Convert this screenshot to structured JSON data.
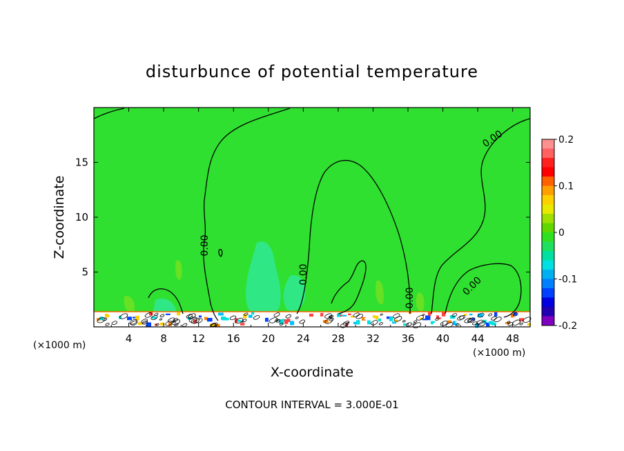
{
  "chart_data": {
    "type": "heatmap",
    "title": "disturbunce of potential temperature",
    "xlabel": "X-coordinate",
    "ylabel": "Z-coordinate",
    "x_unit_left": "(×1000 m)",
    "x_unit_right": "(×1000 m)",
    "xlim": [
      0,
      50
    ],
    "ylim": [
      0,
      20
    ],
    "x_ticks": [
      "4",
      "8",
      "12",
      "16",
      "20",
      "24",
      "28",
      "32",
      "36",
      "40",
      "44",
      "48"
    ],
    "y_ticks": [
      "5",
      "10",
      "15"
    ],
    "colorbar": {
      "min": -0.2,
      "max": 0.2,
      "tick_labels": [
        "0.2",
        "0.1",
        "0",
        "-0.1",
        "-0.2"
      ],
      "colors": [
        "#ff9090",
        "#ff6060",
        "#ff2020",
        "#ff0000",
        "#ff6000",
        "#ffa000",
        "#ffd000",
        "#e8e800",
        "#a0e000",
        "#60d800",
        "#30e020",
        "#20e060",
        "#00e0a0",
        "#00e0e0",
        "#00b0f0",
        "#0080ff",
        "#0040ff",
        "#0000e0",
        "#2000b0",
        "#8000c0"
      ]
    },
    "contour_labels": [
      "0.00",
      "0.00",
      "0.00",
      "0.00",
      "0.00"
    ],
    "footer": "CONTOUR INTERVAL = 3.000E-01"
  },
  "colors": {
    "field": "#30e030",
    "cool_patch": "#30e890",
    "contour": "#000000"
  }
}
